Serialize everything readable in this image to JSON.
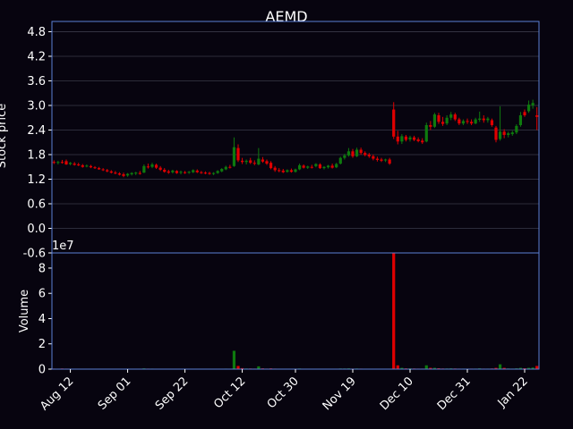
{
  "title": "AEMD",
  "colors": {
    "background": "#07040f",
    "axis": "#5b7fd6",
    "grid": "#3a3a4a",
    "up": "#0e7a0e",
    "down": "#e00000",
    "text": "#ffffff"
  },
  "chart_data": [
    {
      "type": "candlestick",
      "title": "AEMD",
      "ylabel": "Stock price",
      "ylim": [
        -0.6,
        5.05
      ],
      "yticks": [
        "4.8",
        "4.2",
        "3.6",
        "3.0",
        "2.4",
        "1.8",
        "1.2",
        "0.6",
        "0.0",
        "-0.6"
      ],
      "grid": true,
      "x_start": "Aug 8",
      "x_end": "Jan 25",
      "series": [
        {
          "date": "Aug 8",
          "o": 1.62,
          "h": 1.66,
          "l": 1.57,
          "c": 1.6
        },
        {
          "date": "Aug 9",
          "o": 1.6,
          "h": 1.65,
          "l": 1.56,
          "c": 1.62
        },
        {
          "date": "Aug 10",
          "o": 1.62,
          "h": 1.67,
          "l": 1.58,
          "c": 1.6
        },
        {
          "date": "Aug 11",
          "o": 1.64,
          "h": 1.68,
          "l": 1.55,
          "c": 1.56
        },
        {
          "date": "Aug 12",
          "o": 1.57,
          "h": 1.62,
          "l": 1.54,
          "c": 1.6
        },
        {
          "date": "Aug 15",
          "o": 1.58,
          "h": 1.62,
          "l": 1.53,
          "c": 1.55
        },
        {
          "date": "Aug 16",
          "o": 1.56,
          "h": 1.6,
          "l": 1.52,
          "c": 1.54
        },
        {
          "date": "Aug 17",
          "o": 1.54,
          "h": 1.57,
          "l": 1.48,
          "c": 1.5
        },
        {
          "date": "Aug 18",
          "o": 1.52,
          "h": 1.56,
          "l": 1.49,
          "c": 1.53
        },
        {
          "date": "Aug 19",
          "o": 1.52,
          "h": 1.55,
          "l": 1.47,
          "c": 1.49
        },
        {
          "date": "Aug 22",
          "o": 1.49,
          "h": 1.52,
          "l": 1.45,
          "c": 1.47
        },
        {
          "date": "Aug 23",
          "o": 1.47,
          "h": 1.5,
          "l": 1.43,
          "c": 1.44
        },
        {
          "date": "Aug 24",
          "o": 1.44,
          "h": 1.47,
          "l": 1.4,
          "c": 1.42
        },
        {
          "date": "Aug 25",
          "o": 1.42,
          "h": 1.45,
          "l": 1.37,
          "c": 1.39
        },
        {
          "date": "Aug 26",
          "o": 1.39,
          "h": 1.42,
          "l": 1.34,
          "c": 1.36
        },
        {
          "date": "Aug 29",
          "o": 1.36,
          "h": 1.4,
          "l": 1.32,
          "c": 1.34
        },
        {
          "date": "Aug 30",
          "o": 1.34,
          "h": 1.37,
          "l": 1.29,
          "c": 1.31
        },
        {
          "date": "Aug 31",
          "o": 1.32,
          "h": 1.36,
          "l": 1.25,
          "c": 1.28
        },
        {
          "date": "Sep 1",
          "o": 1.29,
          "h": 1.35,
          "l": 1.26,
          "c": 1.33
        },
        {
          "date": "Sep 2",
          "o": 1.32,
          "h": 1.37,
          "l": 1.29,
          "c": 1.35
        },
        {
          "date": "Sep 6",
          "o": 1.34,
          "h": 1.38,
          "l": 1.3,
          "c": 1.36
        },
        {
          "date": "Sep 7",
          "o": 1.35,
          "h": 1.4,
          "l": 1.31,
          "c": 1.34
        },
        {
          "date": "Sep 8",
          "o": 1.36,
          "h": 1.56,
          "l": 1.35,
          "c": 1.52
        },
        {
          "date": "Sep 9",
          "o": 1.51,
          "h": 1.58,
          "l": 1.46,
          "c": 1.5
        },
        {
          "date": "Sep 12",
          "o": 1.5,
          "h": 1.6,
          "l": 1.47,
          "c": 1.56
        },
        {
          "date": "Sep 13",
          "o": 1.55,
          "h": 1.58,
          "l": 1.45,
          "c": 1.48
        },
        {
          "date": "Sep 14",
          "o": 1.48,
          "h": 1.52,
          "l": 1.4,
          "c": 1.43
        },
        {
          "date": "Sep 15",
          "o": 1.43,
          "h": 1.47,
          "l": 1.36,
          "c": 1.38
        },
        {
          "date": "Sep 16",
          "o": 1.39,
          "h": 1.43,
          "l": 1.33,
          "c": 1.36
        },
        {
          "date": "Sep 19",
          "o": 1.37,
          "h": 1.43,
          "l": 1.34,
          "c": 1.41
        },
        {
          "date": "Sep 20",
          "o": 1.4,
          "h": 1.42,
          "l": 1.33,
          "c": 1.35
        },
        {
          "date": "Sep 21",
          "o": 1.36,
          "h": 1.41,
          "l": 1.32,
          "c": 1.38
        },
        {
          "date": "Sep 22",
          "o": 1.37,
          "h": 1.4,
          "l": 1.33,
          "c": 1.36
        },
        {
          "date": "Sep 23",
          "o": 1.36,
          "h": 1.4,
          "l": 1.33,
          "c": 1.38
        },
        {
          "date": "Sep 26",
          "o": 1.37,
          "h": 1.44,
          "l": 1.35,
          "c": 1.42
        },
        {
          "date": "Sep 27",
          "o": 1.41,
          "h": 1.44,
          "l": 1.35,
          "c": 1.37
        },
        {
          "date": "Sep 28",
          "o": 1.37,
          "h": 1.4,
          "l": 1.33,
          "c": 1.35
        },
        {
          "date": "Sep 29",
          "o": 1.36,
          "h": 1.39,
          "l": 1.32,
          "c": 1.34
        },
        {
          "date": "Sep 30",
          "o": 1.35,
          "h": 1.38,
          "l": 1.31,
          "c": 1.33
        },
        {
          "date": "Oct 3",
          "o": 1.33,
          "h": 1.37,
          "l": 1.3,
          "c": 1.35
        },
        {
          "date": "Oct 4",
          "o": 1.35,
          "h": 1.42,
          "l": 1.33,
          "c": 1.4
        },
        {
          "date": "Oct 5",
          "o": 1.39,
          "h": 1.47,
          "l": 1.37,
          "c": 1.45
        },
        {
          "date": "Oct 6",
          "o": 1.44,
          "h": 1.53,
          "l": 1.42,
          "c": 1.5
        },
        {
          "date": "Oct 7",
          "o": 1.5,
          "h": 1.55,
          "l": 1.46,
          "c": 1.48
        },
        {
          "date": "Oct 10",
          "o": 1.52,
          "h": 2.22,
          "l": 1.5,
          "c": 1.98
        },
        {
          "date": "Oct 11",
          "o": 1.96,
          "h": 2.05,
          "l": 1.62,
          "c": 1.66
        },
        {
          "date": "Oct 12",
          "o": 1.65,
          "h": 1.72,
          "l": 1.57,
          "c": 1.62
        },
        {
          "date": "Oct 13",
          "o": 1.62,
          "h": 1.68,
          "l": 1.56,
          "c": 1.65
        },
        {
          "date": "Oct 14",
          "o": 1.66,
          "h": 1.72,
          "l": 1.57,
          "c": 1.6
        },
        {
          "date": "Oct 17",
          "o": 1.6,
          "h": 1.66,
          "l": 1.54,
          "c": 1.58
        },
        {
          "date": "Oct 18",
          "o": 1.56,
          "h": 1.96,
          "l": 1.54,
          "c": 1.7
        },
        {
          "date": "Oct 19",
          "o": 1.68,
          "h": 1.74,
          "l": 1.6,
          "c": 1.63
        },
        {
          "date": "Oct 20",
          "o": 1.64,
          "h": 1.68,
          "l": 1.55,
          "c": 1.58
        },
        {
          "date": "Oct 21",
          "o": 1.6,
          "h": 1.64,
          "l": 1.44,
          "c": 1.47
        },
        {
          "date": "Oct 24",
          "o": 1.48,
          "h": 1.52,
          "l": 1.38,
          "c": 1.42
        },
        {
          "date": "Oct 25",
          "o": 1.42,
          "h": 1.47,
          "l": 1.37,
          "c": 1.4
        },
        {
          "date": "Oct 26",
          "o": 1.41,
          "h": 1.45,
          "l": 1.35,
          "c": 1.37
        },
        {
          "date": "Oct 27",
          "o": 1.38,
          "h": 1.44,
          "l": 1.36,
          "c": 1.42
        },
        {
          "date": "Oct 28",
          "o": 1.42,
          "h": 1.46,
          "l": 1.36,
          "c": 1.38
        },
        {
          "date": "Oct 31",
          "o": 1.38,
          "h": 1.46,
          "l": 1.36,
          "c": 1.44
        },
        {
          "date": "Nov 1",
          "o": 1.44,
          "h": 1.58,
          "l": 1.42,
          "c": 1.54
        },
        {
          "date": "Nov 2",
          "o": 1.53,
          "h": 1.56,
          "l": 1.46,
          "c": 1.48
        },
        {
          "date": "Nov 3",
          "o": 1.48,
          "h": 1.53,
          "l": 1.45,
          "c": 1.51
        },
        {
          "date": "Nov 4",
          "o": 1.5,
          "h": 1.55,
          "l": 1.46,
          "c": 1.49
        },
        {
          "date": "Nov 7",
          "o": 1.52,
          "h": 1.59,
          "l": 1.49,
          "c": 1.57
        },
        {
          "date": "Nov 8",
          "o": 1.56,
          "h": 1.59,
          "l": 1.45,
          "c": 1.47
        },
        {
          "date": "Nov 9",
          "o": 1.47,
          "h": 1.52,
          "l": 1.44,
          "c": 1.5
        },
        {
          "date": "Nov 10",
          "o": 1.49,
          "h": 1.55,
          "l": 1.46,
          "c": 1.53
        },
        {
          "date": "Nov 11",
          "o": 1.53,
          "h": 1.58,
          "l": 1.46,
          "c": 1.48
        },
        {
          "date": "Nov 14",
          "o": 1.49,
          "h": 1.6,
          "l": 1.47,
          "c": 1.57
        },
        {
          "date": "Nov 15",
          "o": 1.58,
          "h": 1.75,
          "l": 1.56,
          "c": 1.72
        },
        {
          "date": "Nov 16",
          "o": 1.72,
          "h": 1.82,
          "l": 1.68,
          "c": 1.78
        },
        {
          "date": "Nov 17",
          "o": 1.78,
          "h": 1.96,
          "l": 1.75,
          "c": 1.88
        },
        {
          "date": "Nov 18",
          "o": 1.88,
          "h": 1.94,
          "l": 1.72,
          "c": 1.76
        },
        {
          "date": "Nov 21",
          "o": 1.76,
          "h": 1.97,
          "l": 1.74,
          "c": 1.92
        },
        {
          "date": "Nov 22",
          "o": 1.92,
          "h": 1.97,
          "l": 1.8,
          "c": 1.84
        },
        {
          "date": "Nov 23",
          "o": 1.84,
          "h": 1.88,
          "l": 1.76,
          "c": 1.79
        },
        {
          "date": "Nov 25",
          "o": 1.8,
          "h": 1.84,
          "l": 1.72,
          "c": 1.76
        },
        {
          "date": "Nov 28",
          "o": 1.76,
          "h": 1.8,
          "l": 1.66,
          "c": 1.7
        },
        {
          "date": "Nov 29",
          "o": 1.7,
          "h": 1.75,
          "l": 1.63,
          "c": 1.67
        },
        {
          "date": "Nov 30",
          "o": 1.68,
          "h": 1.72,
          "l": 1.62,
          "c": 1.65
        },
        {
          "date": "Dec 1",
          "o": 1.66,
          "h": 1.7,
          "l": 1.62,
          "c": 1.68
        },
        {
          "date": "Dec 2",
          "o": 1.68,
          "h": 1.72,
          "l": 1.55,
          "c": 1.58
        },
        {
          "date": "Dec 5",
          "o": 2.9,
          "h": 3.08,
          "l": 2.18,
          "c": 2.24
        },
        {
          "date": "Dec 6",
          "o": 2.24,
          "h": 2.38,
          "l": 2.05,
          "c": 2.12
        },
        {
          "date": "Dec 7",
          "o": 2.12,
          "h": 2.3,
          "l": 2.06,
          "c": 2.25
        },
        {
          "date": "Dec 8",
          "o": 2.24,
          "h": 2.28,
          "l": 2.12,
          "c": 2.16
        },
        {
          "date": "Dec 9",
          "o": 2.17,
          "h": 2.26,
          "l": 2.12,
          "c": 2.22
        },
        {
          "date": "Dec 12",
          "o": 2.22,
          "h": 2.26,
          "l": 2.13,
          "c": 2.16
        },
        {
          "date": "Dec 13",
          "o": 2.17,
          "h": 2.22,
          "l": 2.1,
          "c": 2.13
        },
        {
          "date": "Dec 14",
          "o": 2.14,
          "h": 2.2,
          "l": 2.06,
          "c": 2.1
        },
        {
          "date": "Dec 15",
          "o": 2.12,
          "h": 2.58,
          "l": 2.1,
          "c": 2.52
        },
        {
          "date": "Dec 16",
          "o": 2.52,
          "h": 2.62,
          "l": 2.4,
          "c": 2.48
        },
        {
          "date": "Dec 19",
          "o": 2.48,
          "h": 2.82,
          "l": 2.45,
          "c": 2.78
        },
        {
          "date": "Dec 20",
          "o": 2.76,
          "h": 2.82,
          "l": 2.55,
          "c": 2.6
        },
        {
          "date": "Dec 21",
          "o": 2.6,
          "h": 2.72,
          "l": 2.5,
          "c": 2.55
        },
        {
          "date": "Dec 22",
          "o": 2.56,
          "h": 2.76,
          "l": 2.52,
          "c": 2.7
        },
        {
          "date": "Dec 23",
          "o": 2.7,
          "h": 2.84,
          "l": 2.64,
          "c": 2.78
        },
        {
          "date": "Dec 27",
          "o": 2.78,
          "h": 2.82,
          "l": 2.62,
          "c": 2.66
        },
        {
          "date": "Dec 28",
          "o": 2.66,
          "h": 2.7,
          "l": 2.52,
          "c": 2.56
        },
        {
          "date": "Dec 29",
          "o": 2.56,
          "h": 2.66,
          "l": 2.52,
          "c": 2.62
        },
        {
          "date": "Dec 30",
          "o": 2.62,
          "h": 2.68,
          "l": 2.55,
          "c": 2.6
        },
        {
          "date": "Jan 3",
          "o": 2.6,
          "h": 2.66,
          "l": 2.52,
          "c": 2.56
        },
        {
          "date": "Jan 4",
          "o": 2.56,
          "h": 2.7,
          "l": 2.54,
          "c": 2.66
        },
        {
          "date": "Jan 5",
          "o": 2.65,
          "h": 2.85,
          "l": 2.6,
          "c": 2.68
        },
        {
          "date": "Jan 6",
          "o": 2.68,
          "h": 2.76,
          "l": 2.58,
          "c": 2.64
        },
        {
          "date": "Jan 9",
          "o": 2.64,
          "h": 2.72,
          "l": 2.58,
          "c": 2.68
        },
        {
          "date": "Jan 10",
          "o": 2.64,
          "h": 2.68,
          "l": 2.48,
          "c": 2.52
        },
        {
          "date": "Jan 11",
          "o": 2.46,
          "h": 2.5,
          "l": 2.1,
          "c": 2.16
        },
        {
          "date": "Jan 12",
          "o": 2.18,
          "h": 2.98,
          "l": 2.14,
          "c": 2.36
        },
        {
          "date": "Jan 13",
          "o": 2.36,
          "h": 2.42,
          "l": 2.2,
          "c": 2.28
        },
        {
          "date": "Jan 16",
          "o": 2.28,
          "h": 2.36,
          "l": 2.22,
          "c": 2.32
        },
        {
          "date": "Jan 17",
          "o": 2.3,
          "h": 2.38,
          "l": 2.26,
          "c": 2.34
        },
        {
          "date": "Jan 18",
          "o": 2.34,
          "h": 2.54,
          "l": 2.3,
          "c": 2.5
        },
        {
          "date": "Jan 19",
          "o": 2.52,
          "h": 2.84,
          "l": 2.48,
          "c": 2.76
        },
        {
          "date": "Jan 20",
          "o": 2.84,
          "h": 2.9,
          "l": 2.72,
          "c": 2.76
        },
        {
          "date": "Jan 23",
          "o": 2.86,
          "h": 3.12,
          "l": 2.82,
          "c": 3.02
        },
        {
          "date": "Jan 24",
          "o": 3.0,
          "h": 3.14,
          "l": 2.92,
          "c": 3.06
        },
        {
          "date": "Jan 25",
          "o": 2.76,
          "h": 2.96,
          "l": 2.4,
          "c": 2.72
        }
      ]
    },
    {
      "type": "bar",
      "ylabel": "Volume",
      "scale_label": "1e7",
      "ylim": [
        0,
        9.2
      ],
      "yticks": [
        "8",
        "6",
        "4",
        "2",
        "0"
      ],
      "xticks": [
        {
          "label": "Aug 12",
          "date": "Aug 12"
        },
        {
          "label": "Sep 01",
          "date": "Sep 1"
        },
        {
          "label": "Sep 22",
          "date": "Sep 22"
        },
        {
          "label": "Oct 12",
          "date": "Oct 12"
        },
        {
          "label": "Oct 30",
          "date": "Oct 31"
        },
        {
          "label": "Nov 19",
          "date": "Nov 18"
        },
        {
          "label": "Dec 10",
          "date": "Dec 9"
        },
        {
          "label": "Dec 31",
          "date": "Dec 30"
        },
        {
          "label": "Jan 22",
          "date": "Jan 20"
        }
      ],
      "volumes": [
        0.04,
        0.03,
        0.05,
        0.04,
        0.03,
        0.03,
        0.02,
        0.03,
        0.02,
        0.02,
        0.02,
        0.02,
        0.02,
        0.02,
        0.02,
        0.02,
        0.02,
        0.03,
        0.02,
        0.02,
        0.02,
        0.02,
        0.06,
        0.04,
        0.04,
        0.03,
        0.03,
        0.02,
        0.02,
        0.03,
        0.02,
        0.02,
        0.02,
        0.02,
        0.03,
        0.02,
        0.02,
        0.02,
        0.02,
        0.02,
        0.03,
        0.03,
        0.04,
        0.03,
        1.45,
        0.25,
        0.08,
        0.05,
        0.05,
        0.04,
        0.22,
        0.06,
        0.04,
        0.06,
        0.04,
        0.03,
        0.03,
        0.03,
        0.03,
        0.03,
        0.05,
        0.03,
        0.02,
        0.02,
        0.03,
        0.02,
        0.02,
        0.02,
        0.02,
        0.03,
        0.05,
        0.05,
        0.06,
        0.04,
        0.05,
        0.04,
        0.03,
        0.03,
        0.03,
        0.02,
        0.02,
        0.02,
        0.03,
        9.2,
        0.3,
        0.1,
        0.06,
        0.06,
        0.05,
        0.04,
        0.04,
        0.3,
        0.1,
        0.1,
        0.07,
        0.05,
        0.05,
        0.06,
        0.05,
        0.04,
        0.04,
        0.03,
        0.04,
        0.04,
        0.06,
        0.04,
        0.04,
        0.05,
        0.1,
        0.38,
        0.1,
        0.05,
        0.04,
        0.06,
        0.1,
        0.07,
        0.1,
        0.12,
        0.25
      ]
    }
  ]
}
